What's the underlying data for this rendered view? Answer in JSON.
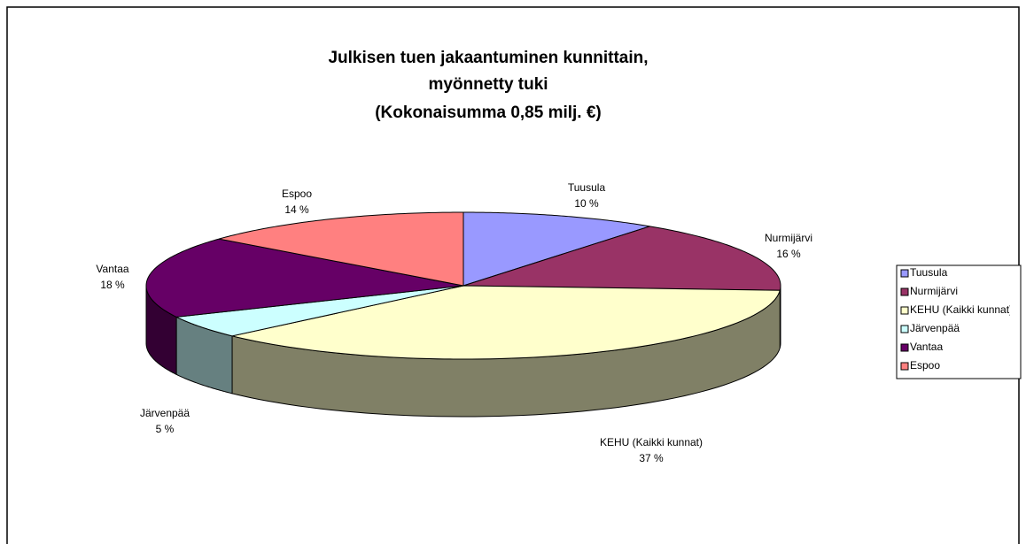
{
  "chart_data": {
    "type": "pie3d",
    "title": [
      "Julkisen tuen jakaantuminen kunnittain,",
      "myönnetty tuki",
      "(Kokonaisumma 0,85 milj. €)"
    ],
    "series": [
      {
        "name": "Tuusula",
        "color": "#9999ff",
        "values": [
          10
        ],
        "value_labels": [
          "10 %"
        ]
      },
      {
        "name": "Nurmijärvi",
        "color": "#993366",
        "values": [
          16
        ],
        "value_labels": [
          "16 %"
        ]
      },
      {
        "name": "KEHU (Kaikki kunnat)",
        "color": "#ffffcc",
        "values": [
          37
        ],
        "value_labels": [
          "37 %"
        ]
      },
      {
        "name": "Järvenpää",
        "color": "#ccffff",
        "values": [
          5
        ],
        "value_labels": [
          "5 %"
        ]
      },
      {
        "name": "Vantaa",
        "color": "#660066",
        "values": [
          18
        ],
        "value_labels": [
          "18 %"
        ]
      },
      {
        "name": "Espoo",
        "color": "#ff8080",
        "values": [
          14
        ],
        "value_labels": [
          "14 %"
        ]
      }
    ],
    "legend": "right"
  }
}
